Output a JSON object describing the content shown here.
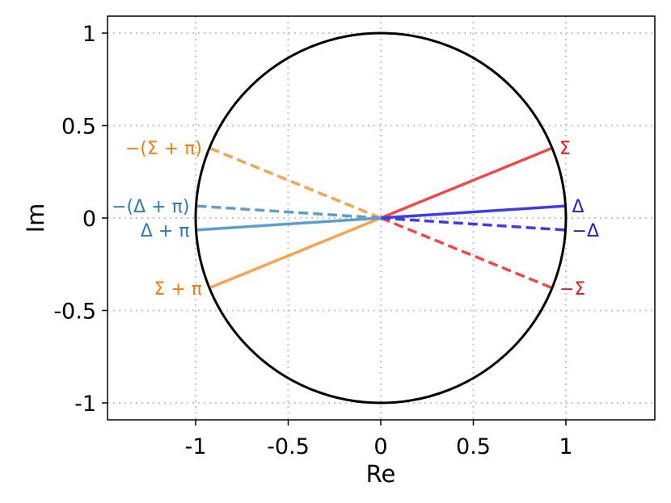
{
  "chart_data": {
    "type": "line",
    "title": "",
    "xlabel": "Re",
    "ylabel": "Im",
    "xlim": [
      -1.45,
      1.45
    ],
    "ylim": [
      -1.09,
      1.09
    ],
    "grid": true,
    "x_ticks": [
      {
        "value": -1,
        "label": "-1"
      },
      {
        "value": -0.5,
        "label": "-0.5"
      },
      {
        "value": 0,
        "label": "0"
      },
      {
        "value": 0.5,
        "label": "0.5"
      },
      {
        "value": 1,
        "label": "1"
      }
    ],
    "y_ticks": [
      {
        "value": 1,
        "label": "1"
      },
      {
        "value": 0.5,
        "label": "0.5"
      },
      {
        "value": 0,
        "label": "0"
      },
      {
        "value": -0.5,
        "label": "-0.5"
      },
      {
        "value": -1,
        "label": "-1"
      }
    ],
    "circle": {
      "radius": 1,
      "color": "#000000"
    },
    "rays": [
      {
        "label": "Σ",
        "x": 0.93,
        "y": 0.38,
        "color": "#f0484a",
        "label_color": "#e8141b",
        "dashed": false,
        "label_anchor": "start"
      },
      {
        "label": "−Σ",
        "x": 0.93,
        "y": -0.38,
        "color": "#f0484a",
        "label_color": "#e8141b",
        "dashed": true,
        "label_anchor": "start"
      },
      {
        "label": "Δ",
        "x": 0.998,
        "y": 0.065,
        "color": "#3d3de8",
        "label_color": "#1a1ae0",
        "dashed": false,
        "label_anchor": "start"
      },
      {
        "label": "−Δ",
        "x": 0.998,
        "y": -0.065,
        "color": "#3d3de8",
        "label_color": "#1a1ae0",
        "dashed": true,
        "label_anchor": "start"
      },
      {
        "label": "Σ + π",
        "x": -0.93,
        "y": -0.38,
        "color": "#f7a24e",
        "label_color": "#f07d0c",
        "dashed": false,
        "label_anchor": "end"
      },
      {
        "label": "−(Σ + π)",
        "x": -0.93,
        "y": 0.38,
        "color": "#f7a24e",
        "label_color": "#f07d0c",
        "dashed": true,
        "label_anchor": "end"
      },
      {
        "label": "Δ + π",
        "x": -0.998,
        "y": -0.065,
        "color": "#5e9ec8",
        "label_color": "#2b7bb3",
        "dashed": false,
        "label_anchor": "end"
      },
      {
        "label": "−(Δ + π)",
        "x": -0.998,
        "y": 0.065,
        "color": "#5e9ec8",
        "label_color": "#2b7bb3",
        "dashed": true,
        "label_anchor": "end"
      }
    ]
  }
}
